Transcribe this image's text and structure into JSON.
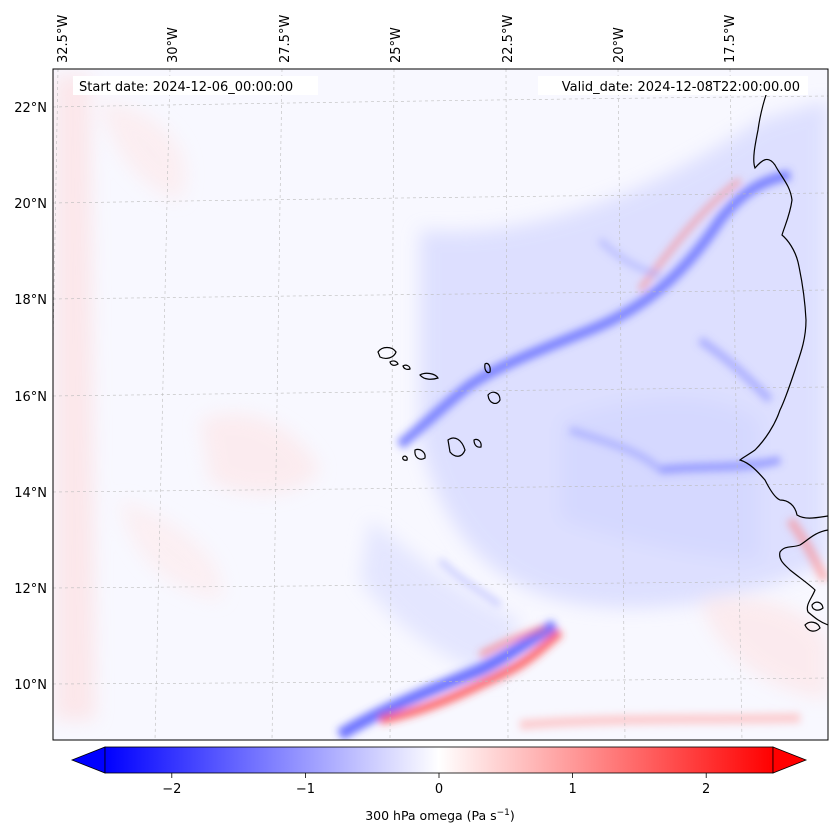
{
  "map": {
    "start_date_label": "Start date: 2024-12-06_00:00:00",
    "valid_date_label": "Valid_date: 2024-12-08T22:00:00.00",
    "lon_labels": [
      "32.5°W",
      "30°W",
      "27.5°W",
      "25°W",
      "22.5°W",
      "20°W",
      "17.5°W"
    ],
    "lat_labels": [
      "22°N",
      "20°N",
      "18°N",
      "16°N",
      "14°N",
      "12°N",
      "10°N"
    ],
    "colors": {
      "negative": "#0000ff",
      "zero": "#ffffff",
      "positive": "#ff0000",
      "coast": "#000000"
    }
  },
  "colorbar": {
    "label": "300 hPa omega (Pa s",
    "label_sup": "−1",
    "label_close": ")",
    "ticks": [
      "−2",
      "−1",
      "0",
      "1",
      "2"
    ],
    "tick_values": [
      -2,
      -1,
      0,
      1,
      2
    ],
    "range": [
      -2.5,
      2.5
    ]
  }
}
